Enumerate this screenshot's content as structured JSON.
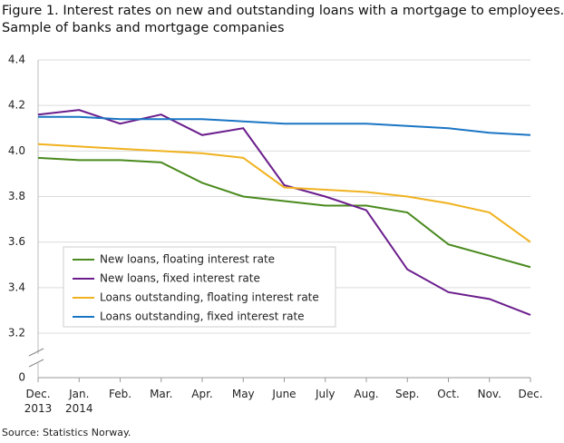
{
  "chart_data": {
    "type": "line",
    "title": "Figure 1. Interest rates on new and outstanding loans with a mortgage to employees.",
    "subtitle": "Sample of banks and mortgage companies",
    "source": "Source: Statistics Norway.",
    "categories": [
      "Dec. 2013",
      "Jan. 2014",
      "Feb.",
      "Mar.",
      "Apr.",
      "May",
      "June",
      "July",
      "Aug.",
      "Sep.",
      "Oct.",
      "Nov.",
      "Dec."
    ],
    "series": [
      {
        "name": "New loans, floating interest rate",
        "color": "#4a8a1e",
        "values": [
          3.97,
          3.96,
          3.96,
          3.95,
          3.86,
          3.8,
          3.78,
          3.76,
          3.76,
          3.73,
          3.59,
          3.54,
          3.49
        ]
      },
      {
        "name": "New loans, fixed interest rate",
        "color": "#6b1d8c",
        "values": [
          4.16,
          4.18,
          4.12,
          4.16,
          4.07,
          4.1,
          3.85,
          3.8,
          3.74,
          3.48,
          3.38,
          3.35,
          3.28
        ]
      },
      {
        "name": "Loans outstanding, floating interest rate",
        "color": "#f0b21f",
        "values": [
          4.03,
          4.02,
          4.01,
          4.0,
          3.99,
          3.97,
          3.84,
          3.83,
          3.82,
          3.8,
          3.77,
          3.73,
          3.6
        ]
      },
      {
        "name": "Loans outstanding, fixed interest rate",
        "color": "#1a75c4",
        "values": [
          4.15,
          4.15,
          4.14,
          4.14,
          4.14,
          4.13,
          4.12,
          4.12,
          4.12,
          4.11,
          4.1,
          4.08,
          4.07
        ]
      }
    ],
    "ylim": [
      3.2,
      4.4
    ],
    "yticks": [
      0,
      3.2,
      3.4,
      3.6,
      3.8,
      {
        "value": 4,
        "label": "4.0"
      },
      4.2,
      4.4
    ],
    "grid": true,
    "axis_break": true
  }
}
